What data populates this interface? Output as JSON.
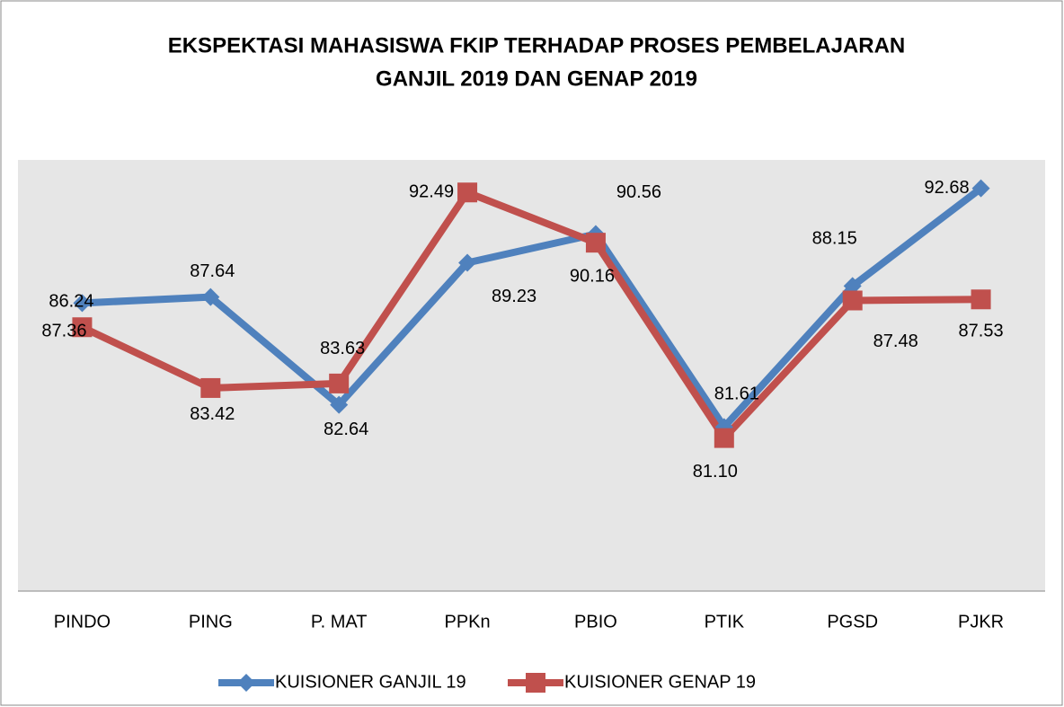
{
  "chart_data": {
    "type": "line",
    "title": [
      "EKSPEKTASI  MAHASISWA  FKIP TERHADAP PROSES PEMBELAJARAN",
      "GANJIL 2019 DAN GENAP 2019"
    ],
    "categories": [
      "PINDO",
      "PING",
      "P. MAT",
      "PPKn",
      "PBIO",
      "PTIK",
      "PGSD",
      "PJKR"
    ],
    "series": [
      {
        "name": "KUISIONER GANJIL 19",
        "color": "#4f81bd",
        "marker": "diamond",
        "values": [
          87.36,
          87.64,
          82.64,
          89.23,
          90.56,
          81.61,
          88.15,
          92.68
        ],
        "value_labels": [
          "87.36",
          "87.64",
          "82.64",
          "89.23",
          "90.56",
          "81.61",
          "88.15",
          "92.68"
        ]
      },
      {
        "name": "KUISIONER GENAP 19",
        "color": "#c0504d",
        "marker": "square",
        "values": [
          86.24,
          83.42,
          83.63,
          92.49,
          90.16,
          81.1,
          87.48,
          87.53
        ],
        "value_labels": [
          "86.24",
          "83.42",
          "83.63",
          "92.49",
          "90.16",
          "81.10",
          "87.48",
          "87.53"
        ]
      }
    ],
    "ylim": [
      74,
      94
    ],
    "legend": "bottom"
  }
}
